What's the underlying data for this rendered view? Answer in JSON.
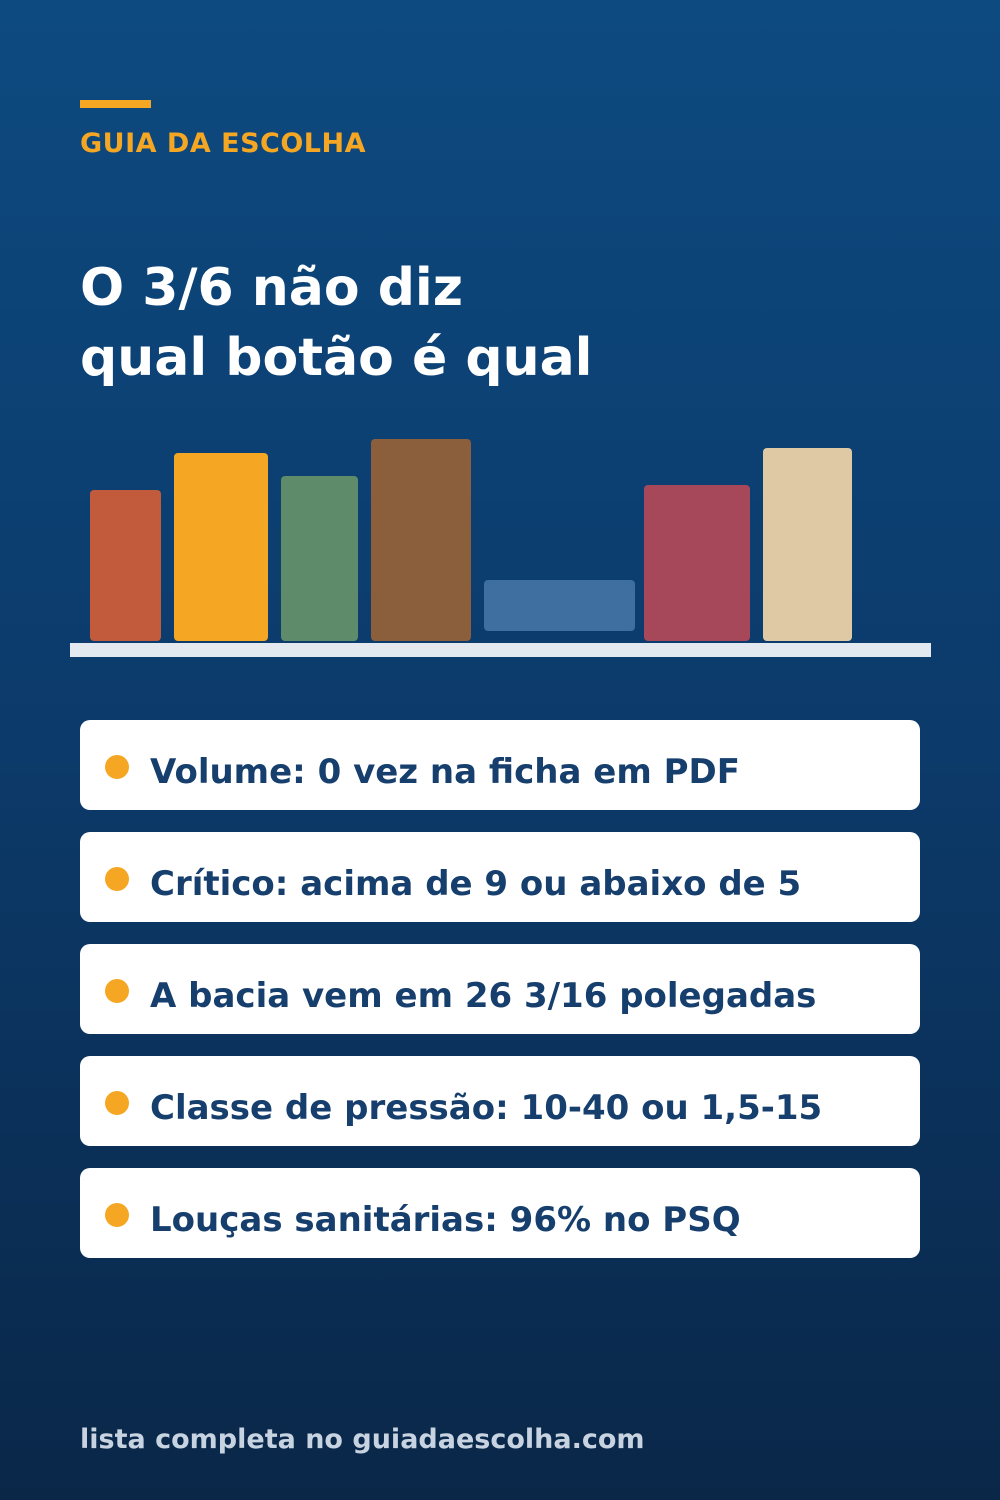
{
  "header": {
    "kicker": "GUIA DA ESCOLHA",
    "title_lines": [
      "O 3/6 não diz",
      "qual botão é qual"
    ],
    "accent_color": "#f5a623"
  },
  "illustration": {
    "name": "bookshelf",
    "book_colors": [
      "#c25b3b",
      "#f5a623",
      "#5e8c6a",
      "#8b5e3c",
      "#3f6fa0",
      "#a6475a",
      "#dfc9a5"
    ]
  },
  "bullets": [
    {
      "text": "Volume: 0 vez na ficha em PDF"
    },
    {
      "text": "Crítico: acima de 9 ou abaixo de 5"
    },
    {
      "text": "A bacia vem em 26 3/16 polegadas"
    },
    {
      "text": "Classe de pressão: 10-40 ou 1,5-15"
    },
    {
      "text": "Louças sanitárias: 96% no PSQ"
    }
  ],
  "footer": {
    "text": "lista completa no guiadaescolha.com"
  }
}
